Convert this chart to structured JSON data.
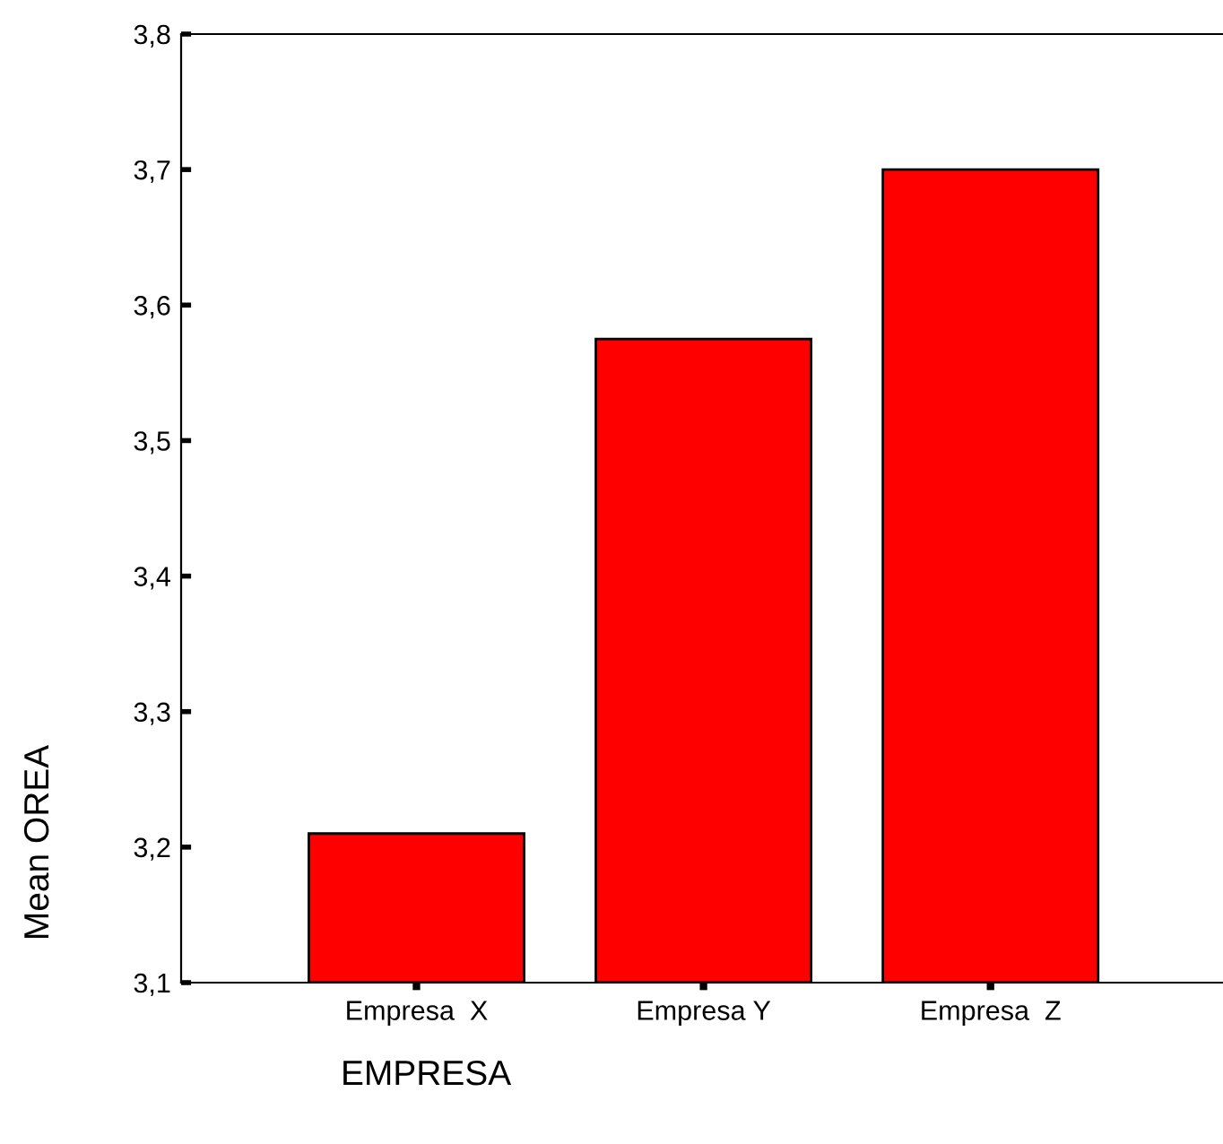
{
  "chart_data": {
    "type": "bar",
    "categories": [
      "Empresa  X",
      "Empresa Y",
      "Empresa  Z"
    ],
    "values": [
      3.21,
      3.575,
      3.7
    ],
    "color": "#ff0000",
    "xlabel": "EMPRESA",
    "ylabel": "Mean OREA",
    "ylim": [
      3.1,
      3.8
    ],
    "yticks": [
      {
        "value": 3.1,
        "label": "3,1"
      },
      {
        "value": 3.2,
        "label": "3,2"
      },
      {
        "value": 3.3,
        "label": "3,3"
      },
      {
        "value": 3.4,
        "label": "3,4"
      },
      {
        "value": 3.5,
        "label": "3,5"
      },
      {
        "value": 3.6,
        "label": "3,6"
      },
      {
        "value": 3.7,
        "label": "3,7"
      },
      {
        "value": 3.8,
        "label": "3,8"
      }
    ],
    "grid": false,
    "legend": false
  }
}
